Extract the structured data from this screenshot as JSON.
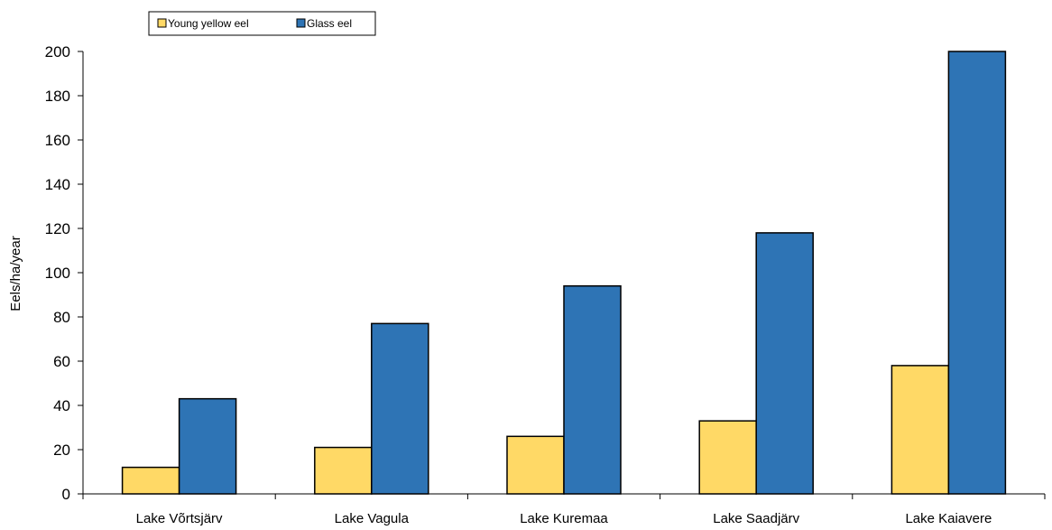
{
  "chart_data": {
    "type": "bar",
    "categories": [
      "Lake Võrtsjärv",
      "Lake Vagula",
      "Lake Kuremaa",
      "Lake Saadjärv",
      "Lake Kaiavere"
    ],
    "series": [
      {
        "name": "Young yellow eel",
        "values": [
          12,
          21,
          26,
          33,
          58
        ],
        "color": "#FFD966"
      },
      {
        "name": "Glass eel",
        "values": [
          43,
          77,
          94,
          118,
          200
        ],
        "color": "#2E74B5"
      }
    ],
    "xlabel": "",
    "ylabel": "Eels/ha/year",
    "ylim": [
      0,
      200
    ],
    "yticks": [
      0,
      20,
      40,
      60,
      80,
      100,
      120,
      140,
      160,
      180,
      200
    ],
    "grid": false,
    "legend_position": "top-left"
  }
}
